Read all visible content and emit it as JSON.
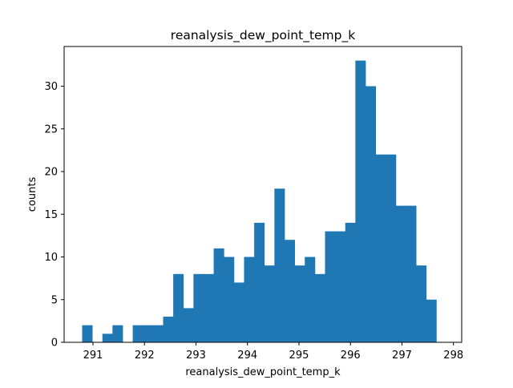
{
  "chart_data": {
    "type": "bar",
    "title": "reanalysis_dew_point_temp_k",
    "xlabel": "reanalysis_dew_point_temp_k",
    "ylabel": "counts",
    "xlim": [
      290.44,
      298.16
    ],
    "ylim": [
      0,
      34.65
    ],
    "xticks": [
      "291",
      "292",
      "293",
      "294",
      "295",
      "296",
      "297",
      "298"
    ],
    "yticks": [
      "0",
      "5",
      "10",
      "15",
      "20",
      "25",
      "30"
    ],
    "bin_start": 290.79,
    "bin_width": 0.1965,
    "values": [
      2,
      0,
      1,
      2,
      0,
      2,
      2,
      2,
      3,
      8,
      4,
      8,
      8,
      11,
      10,
      7,
      10,
      14,
      9,
      18,
      12,
      9,
      10,
      8,
      13,
      13,
      14,
      33,
      30,
      22,
      22,
      16,
      16,
      9,
      5
    ],
    "bar_color": "#1f77b4",
    "grid": false
  }
}
